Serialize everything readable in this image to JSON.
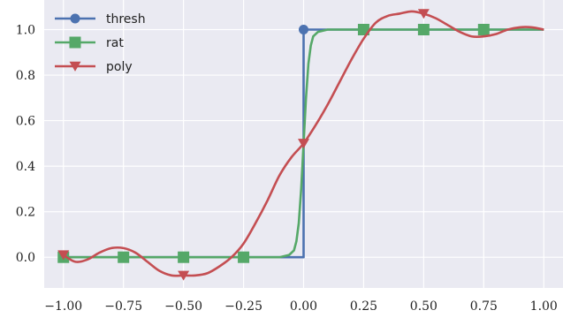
{
  "chart_data": {
    "type": "line",
    "title": "",
    "xlabel": "",
    "ylabel": "",
    "xlim": [
      -1.08,
      1.08
    ],
    "ylim": [
      -0.135,
      1.13
    ],
    "grid": true,
    "background": "#EAEAF2",
    "grid_color": "#FFFFFF",
    "legend_position": "top-left",
    "x_ticks": [
      -1.0,
      -0.75,
      -0.5,
      -0.25,
      0.0,
      0.25,
      0.5,
      0.75,
      1.0
    ],
    "x_tick_labels": [
      "−1.00",
      "−0.75",
      "−0.50",
      "−0.25",
      "0.00",
      "0.25",
      "0.50",
      "0.75",
      "1.00"
    ],
    "y_ticks": [
      0.0,
      0.2,
      0.4,
      0.6,
      0.8,
      1.0
    ],
    "y_tick_labels": [
      "0.0",
      "0.2",
      "0.4",
      "0.6",
      "0.8",
      "1.0"
    ],
    "series": [
      {
        "name": "thresh",
        "color": "#4C72B0",
        "marker": "circle",
        "x": [
          -1.0,
          0.0,
          0.0,
          1.0
        ],
        "y": [
          0.0,
          0.0,
          1.0,
          1.0
        ],
        "markers": [
          [
            0.0,
            1.0
          ]
        ]
      },
      {
        "name": "rat",
        "color": "#55A868",
        "marker": "square",
        "x": [
          -1.0,
          -0.1,
          -0.06,
          -0.04,
          -0.03,
          -0.02,
          -0.01,
          0.0,
          0.01,
          0.02,
          0.03,
          0.04,
          0.06,
          0.1,
          1.0
        ],
        "y": [
          0.0,
          0.0,
          0.01,
          0.03,
          0.07,
          0.15,
          0.3,
          0.5,
          0.7,
          0.85,
          0.93,
          0.97,
          0.99,
          1.0,
          1.0
        ],
        "markers": [
          [
            -1.0,
            0.0
          ],
          [
            -0.75,
            0.0
          ],
          [
            -0.5,
            0.0
          ],
          [
            -0.25,
            0.0
          ],
          [
            0.25,
            1.0
          ],
          [
            0.5,
            1.0
          ],
          [
            0.75,
            1.0
          ]
        ]
      },
      {
        "name": "poly",
        "color": "#C44E52",
        "marker": "triangle-down",
        "x": [
          -1.0,
          -0.95,
          -0.9,
          -0.85,
          -0.8,
          -0.75,
          -0.7,
          -0.65,
          -0.6,
          -0.55,
          -0.5,
          -0.45,
          -0.4,
          -0.35,
          -0.3,
          -0.25,
          -0.2,
          -0.15,
          -0.1,
          -0.05,
          0.0,
          0.05,
          0.1,
          0.15,
          0.2,
          0.25,
          0.3,
          0.35,
          0.4,
          0.45,
          0.5,
          0.55,
          0.6,
          0.65,
          0.7,
          0.75,
          0.8,
          0.85,
          0.9,
          0.95,
          1.0
        ],
        "y": [
          0.01,
          -0.02,
          -0.01,
          0.02,
          0.04,
          0.04,
          0.02,
          -0.02,
          -0.06,
          -0.08,
          -0.08,
          -0.08,
          -0.07,
          -0.04,
          0.0,
          0.06,
          0.15,
          0.25,
          0.36,
          0.44,
          0.5,
          0.58,
          0.67,
          0.77,
          0.87,
          0.96,
          1.03,
          1.06,
          1.07,
          1.08,
          1.07,
          1.05,
          1.02,
          0.99,
          0.97,
          0.97,
          0.98,
          1.0,
          1.01,
          1.01,
          1.0
        ],
        "markers": [
          [
            -1.0,
            0.01
          ],
          [
            -0.5,
            -0.08
          ],
          [
            0.0,
            0.5
          ],
          [
            0.5,
            1.07
          ]
        ]
      }
    ]
  }
}
